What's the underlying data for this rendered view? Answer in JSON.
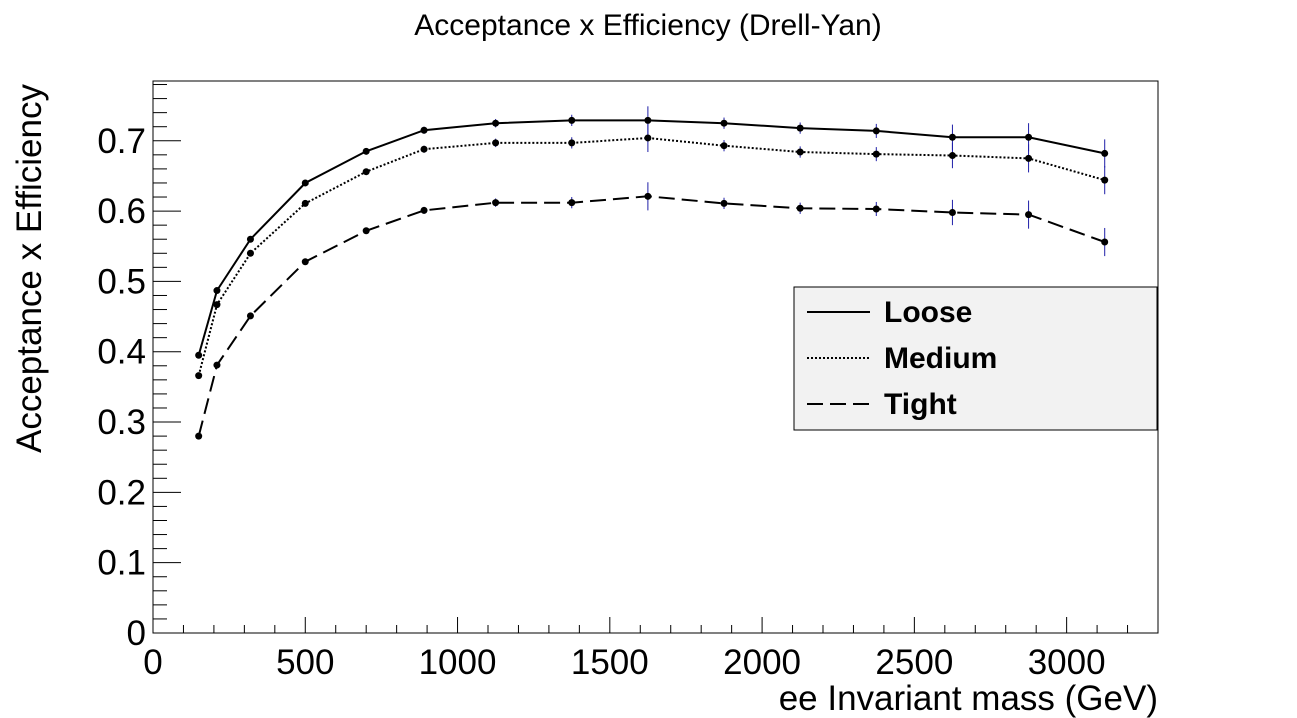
{
  "chart_data": {
    "type": "line",
    "title": "Acceptance x Efficiency (Drell-Yan)",
    "xlabel": "ee Invariant mass (GeV)",
    "ylabel": "Acceptance x Efficiency",
    "xlim": [
      0,
      3300
    ],
    "ylim": [
      0,
      0.785
    ],
    "x_ticks": [
      0,
      500,
      1000,
      1500,
      2000,
      2500,
      3000
    ],
    "x_tick_labels": [
      "0",
      "500",
      "1000",
      "1500",
      "2000",
      "2500",
      "3000"
    ],
    "y_ticks": [
      0,
      0.1,
      0.2,
      0.3,
      0.4,
      0.5,
      0.6,
      0.7
    ],
    "y_tick_labels": [
      "0",
      "0.1",
      "0.2",
      "0.3",
      "0.4",
      "0.5",
      "0.6",
      "0.7"
    ],
    "grid": false,
    "legend_position": "right",
    "x": [
      150,
      210,
      320,
      500,
      700,
      890,
      1125,
      1375,
      1625,
      1875,
      2125,
      2375,
      2625,
      2875,
      3125
    ],
    "series": [
      {
        "name": "Loose",
        "dash": "solid",
        "values": [
          0.395,
          0.487,
          0.56,
          0.64,
          0.685,
          0.715,
          0.725,
          0.729,
          0.729,
          0.725,
          0.718,
          0.714,
          0.705,
          0.705,
          0.682
        ],
        "errors": [
          0.004,
          0.004,
          0.004,
          0.004,
          0.004,
          0.005,
          0.006,
          0.008,
          0.02,
          0.008,
          0.008,
          0.01,
          0.018,
          0.02,
          0.02
        ]
      },
      {
        "name": "Medium",
        "dash": "dotted",
        "values": [
          0.366,
          0.467,
          0.54,
          0.611,
          0.656,
          0.688,
          0.697,
          0.697,
          0.704,
          0.693,
          0.684,
          0.681,
          0.679,
          0.675,
          0.644
        ],
        "errors": [
          0.004,
          0.004,
          0.004,
          0.004,
          0.004,
          0.005,
          0.006,
          0.008,
          0.02,
          0.008,
          0.008,
          0.01,
          0.018,
          0.02,
          0.02
        ]
      },
      {
        "name": "Tight",
        "dash": "dashed",
        "values": [
          0.28,
          0.381,
          0.451,
          0.528,
          0.572,
          0.601,
          0.612,
          0.612,
          0.621,
          0.611,
          0.604,
          0.603,
          0.598,
          0.595,
          0.556
        ],
        "errors": [
          0.004,
          0.004,
          0.004,
          0.004,
          0.004,
          0.005,
          0.006,
          0.008,
          0.02,
          0.008,
          0.008,
          0.01,
          0.018,
          0.02,
          0.02
        ]
      }
    ],
    "colors": {
      "line": "#000000",
      "error_bar": "#1f1fa8",
      "legend_fill": "#f2f2f2",
      "frame": "#000000"
    }
  }
}
